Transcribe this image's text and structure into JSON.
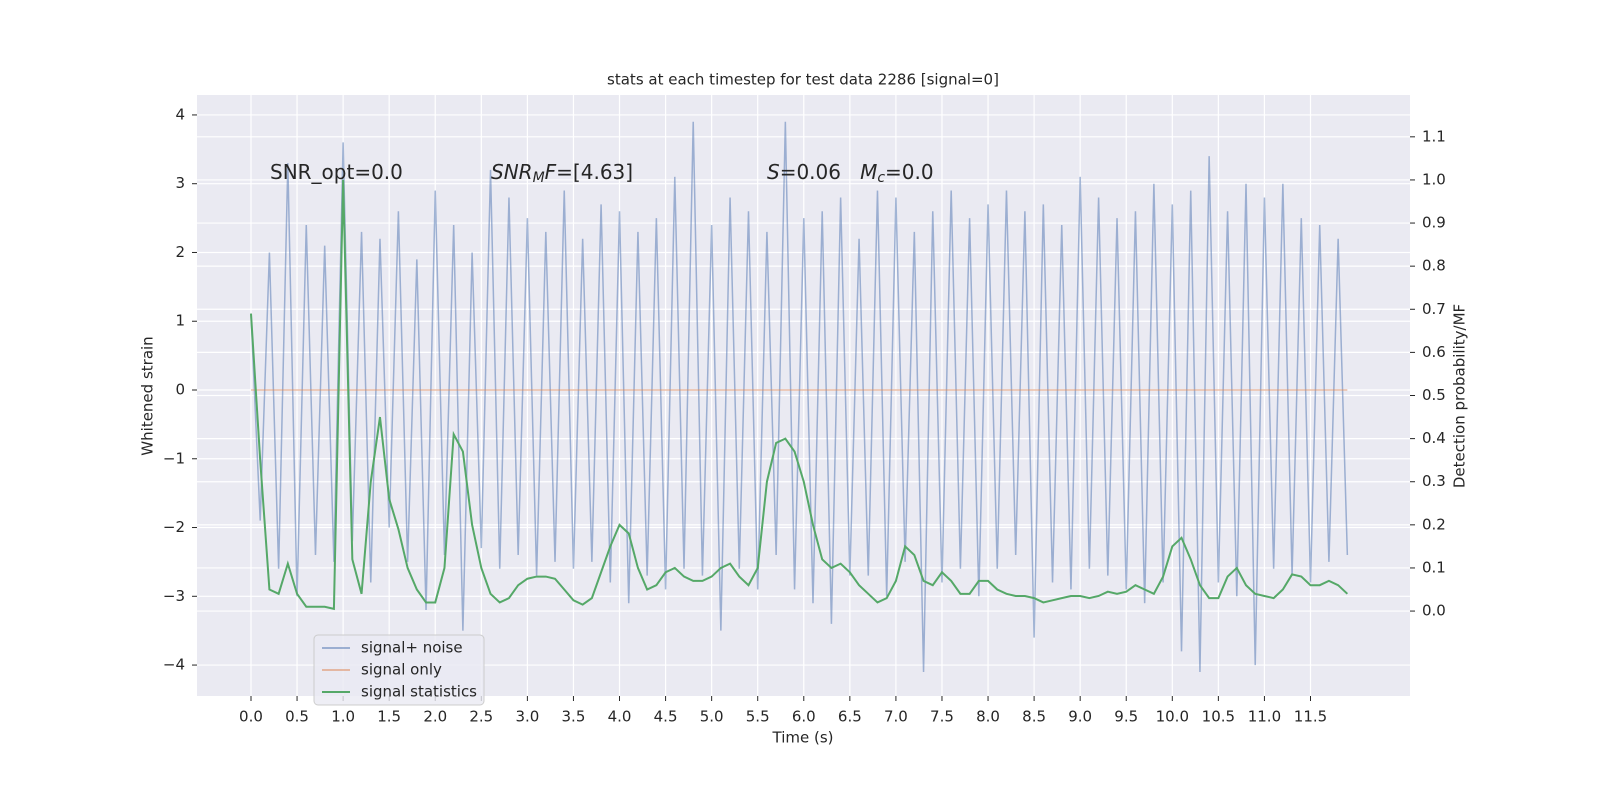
{
  "chart_data": {
    "type": "line",
    "title": "stats at each timestep for test data 2286 [signal=0]",
    "xlabel": "Time (s)",
    "ylabel": "Whitened strain",
    "y2label": "Detection probability/MF",
    "xlim": [
      -0.586,
      12.58
    ],
    "ylim": [
      -4.45,
      4.29
    ],
    "y2lim": [
      -0.197,
      1.197
    ],
    "xticks": [
      {
        "value": 0,
        "label": "0.0"
      },
      0.5,
      {
        "value": 1,
        "label": "1.0"
      },
      1.5,
      {
        "value": 2,
        "label": "2.0"
      },
      2.5,
      {
        "value": 3,
        "label": "3.0"
      },
      3.5,
      {
        "value": 4,
        "label": "4.0"
      },
      4.5,
      {
        "value": 5,
        "label": "5.0"
      },
      5.5,
      {
        "value": 6,
        "label": "6.0"
      },
      6.5,
      {
        "value": 7,
        "label": "7.0"
      },
      7.5,
      {
        "value": 8,
        "label": "8.0"
      },
      8.5,
      {
        "value": 9,
        "label": "9.0"
      },
      9.5,
      {
        "value": 10,
        "label": "10.0"
      },
      10.5,
      {
        "value": 11,
        "label": "11.0"
      },
      11.5
    ],
    "yticks": [
      {
        "value": -4,
        "label": "−4"
      },
      {
        "value": -3,
        "label": "−3"
      },
      {
        "value": -2,
        "label": "−2"
      },
      {
        "value": -1,
        "label": "−1"
      },
      0,
      1,
      2,
      3,
      4
    ],
    "y2ticks": [
      {
        "value": 0,
        "label": "0.0"
      },
      0.1,
      0.2,
      0.3,
      0.4,
      0.5,
      0.6,
      0.7,
      0.8,
      0.9,
      {
        "value": 1,
        "label": "1.0"
      },
      1.1
    ],
    "grid": true,
    "legend": "lower left",
    "annotations": [
      {
        "parts": [
          {
            "text": "SNR_opt=0.0",
            "style": "normal"
          }
        ]
      },
      {
        "parts": [
          {
            "text": "SNR",
            "style": "italic"
          },
          {
            "text": "M",
            "style": "italic-sub"
          },
          {
            "text": "F",
            "style": "italic"
          },
          {
            "text": "=[4.63]",
            "style": "normal"
          }
        ]
      },
      {
        "parts": [
          {
            "text": "S",
            "style": "italic"
          },
          {
            "text": "=0.06   ",
            "style": "normal"
          },
          {
            "text": "M",
            "style": "italic"
          },
          {
            "text": "c",
            "style": "italic-sub"
          },
          {
            "text": "=0.0",
            "style": "normal"
          }
        ]
      }
    ],
    "x": [
      0,
      0.1,
      0.2,
      0.3,
      0.4,
      0.5,
      0.6,
      0.7,
      0.8,
      0.9,
      1,
      1.1,
      1.2,
      1.3,
      1.4,
      1.5,
      1.6,
      1.7,
      1.8,
      1.9,
      2,
      2.1,
      2.2,
      2.3,
      2.4,
      2.5,
      2.6,
      2.7,
      2.8,
      2.9,
      3,
      3.1,
      3.2,
      3.3,
      3.4,
      3.5,
      3.6,
      3.7,
      3.8,
      3.9,
      4,
      4.1,
      4.2,
      4.3,
      4.4,
      4.5,
      4.6,
      4.7,
      4.8,
      4.9,
      5,
      5.1,
      5.2,
      5.3,
      5.4,
      5.5,
      5.6,
      5.7,
      5.8,
      5.9,
      6,
      6.1,
      6.2,
      6.3,
      6.4,
      6.5,
      6.6,
      6.7,
      6.8,
      6.9,
      7,
      7.1,
      7.2,
      7.3,
      7.4,
      7.5,
      7.6,
      7.7,
      7.8,
      7.9,
      8,
      8.1,
      8.2,
      8.3,
      8.4,
      8.5,
      8.6,
      8.7,
      8.8,
      8.9,
      9,
      9.1,
      9.2,
      9.3,
      9.4,
      9.5,
      9.6,
      9.7,
      9.8,
      9.9,
      10,
      10.1,
      10.2,
      10.3,
      10.4,
      10.5,
      10.6,
      10.7,
      10.8,
      10.9,
      11,
      11.1,
      11.2,
      11.3,
      11.4,
      11.5,
      11.6,
      11.7,
      11.8,
      11.9
    ],
    "series": [
      {
        "name": "signal+ noise",
        "color": "#4c72b0",
        "opacity": 0.5,
        "axis": "y",
        "values": [
          1.1,
          -1.9,
          2.0,
          -2.6,
          3.3,
          -3.0,
          2.4,
          -2.4,
          2.1,
          -2.5,
          3.6,
          -2.2,
          2.3,
          -2.8,
          2.2,
          -2.0,
          2.6,
          -2.5,
          1.9,
          -3.2,
          2.9,
          -2.4,
          2.4,
          -3.5,
          2.0,
          -2.3,
          3.2,
          -2.6,
          2.8,
          -2.4,
          2.5,
          -2.7,
          2.3,
          -2.5,
          2.9,
          -2.6,
          2.2,
          -2.5,
          2.7,
          -2.8,
          2.6,
          -3.1,
          2.3,
          -2.7,
          2.5,
          -2.9,
          3.1,
          -2.6,
          3.9,
          -2.7,
          2.4,
          -3.5,
          2.8,
          -2.6,
          2.6,
          -2.9,
          2.3,
          -2.4,
          3.9,
          -2.9,
          2.5,
          -3.1,
          2.6,
          -3.4,
          2.8,
          -2.7,
          2.2,
          -2.7,
          2.9,
          -3.0,
          2.8,
          -2.5,
          2.3,
          -4.1,
          2.6,
          -2.8,
          2.9,
          -2.6,
          2.5,
          -3.0,
          2.7,
          -2.6,
          2.9,
          -2.4,
          2.6,
          -3.6,
          2.7,
          -2.8,
          2.4,
          -2.9,
          3.1,
          -2.6,
          2.8,
          -2.7,
          2.5,
          -2.9,
          2.6,
          -3.1,
          3.0,
          -2.8,
          2.7,
          -3.8,
          2.9,
          -4.1,
          3.4,
          -2.8,
          2.6,
          -3.0,
          3.0,
          -4.0,
          2.8,
          -2.6,
          3.0,
          -2.7,
          2.5,
          -2.8,
          2.4,
          -2.5,
          2.2,
          -2.4
        ]
      },
      {
        "name": "signal only",
        "color": "#dd8452",
        "opacity": 0.5,
        "axis": "y",
        "values": [
          0,
          0,
          0,
          0,
          0,
          0,
          0,
          0,
          0,
          0,
          0,
          0,
          0,
          0,
          0,
          0,
          0,
          0,
          0,
          0,
          0,
          0,
          0,
          0,
          0,
          0,
          0,
          0,
          0,
          0,
          0,
          0,
          0,
          0,
          0,
          0,
          0,
          0,
          0,
          0,
          0,
          0,
          0,
          0,
          0,
          0,
          0,
          0,
          0,
          0,
          0,
          0,
          0,
          0,
          0,
          0,
          0,
          0,
          0,
          0,
          0,
          0,
          0,
          0,
          0,
          0,
          0,
          0,
          0,
          0,
          0,
          0,
          0,
          0,
          0,
          0,
          0,
          0,
          0,
          0,
          0,
          0,
          0,
          0,
          0,
          0,
          0,
          0,
          0,
          0,
          0,
          0,
          0,
          0,
          0,
          0,
          0,
          0,
          0,
          0,
          0,
          0,
          0,
          0,
          0,
          0,
          0,
          0,
          0,
          0,
          0,
          0,
          0,
          0,
          0,
          0,
          0,
          0,
          0,
          0
        ]
      },
      {
        "name": "signal statistics",
        "color": "#55a868",
        "opacity": 1,
        "axis": "y2",
        "values": [
          0.69,
          0.35,
          0.05,
          0.04,
          0.11,
          0.04,
          0.01,
          0.01,
          0.01,
          0.005,
          1.0,
          0.12,
          0.04,
          0.3,
          0.45,
          0.26,
          0.19,
          0.1,
          0.05,
          0.02,
          0.02,
          0.1,
          0.41,
          0.37,
          0.2,
          0.1,
          0.04,
          0.02,
          0.03,
          0.06,
          0.075,
          0.08,
          0.08,
          0.075,
          0.05,
          0.025,
          0.015,
          0.03,
          0.09,
          0.15,
          0.2,
          0.18,
          0.1,
          0.05,
          0.06,
          0.09,
          0.1,
          0.08,
          0.07,
          0.07,
          0.08,
          0.1,
          0.11,
          0.08,
          0.06,
          0.1,
          0.3,
          0.39,
          0.4,
          0.37,
          0.3,
          0.2,
          0.12,
          0.1,
          0.11,
          0.09,
          0.06,
          0.04,
          0.02,
          0.03,
          0.07,
          0.15,
          0.13,
          0.07,
          0.06,
          0.09,
          0.07,
          0.04,
          0.04,
          0.07,
          0.07,
          0.05,
          0.04,
          0.035,
          0.035,
          0.03,
          0.02,
          0.025,
          0.03,
          0.035,
          0.035,
          0.03,
          0.035,
          0.045,
          0.04,
          0.045,
          0.06,
          0.05,
          0.04,
          0.08,
          0.15,
          0.17,
          0.12,
          0.06,
          0.03,
          0.03,
          0.08,
          0.1,
          0.06,
          0.04,
          0.035,
          0.03,
          0.05,
          0.085,
          0.08,
          0.06,
          0.06,
          0.07,
          0.06,
          0.04
        ]
      }
    ]
  }
}
